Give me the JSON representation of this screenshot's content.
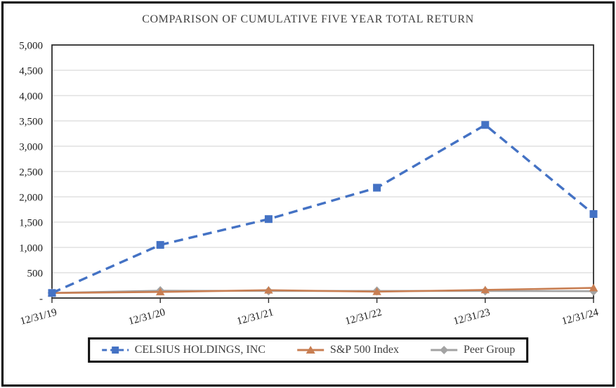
{
  "title": "COMPARISON OF CUMULATIVE FIVE YEAR TOTAL RETURN",
  "chart_data": {
    "type": "line",
    "title": "COMPARISON OF CUMULATIVE FIVE YEAR TOTAL RETURN",
    "categories": [
      "12/31/19",
      "12/31/20",
      "12/31/21",
      "12/31/22",
      "12/31/23",
      "12/31/24"
    ],
    "series": [
      {
        "name": "CELSIUS HOLDINGS, INC",
        "values": [
          100,
          1050,
          1560,
          2180,
          3420,
          1660
        ],
        "color": "#4472C4",
        "marker": "square",
        "line_style": "dashed"
      },
      {
        "name": "S&P 500 Index",
        "values": [
          100,
          120,
          155,
          125,
          160,
          200
        ],
        "color": "#C87E52",
        "marker": "triangle",
        "line_style": "solid"
      },
      {
        "name": "Peer Group",
        "values": [
          100,
          145,
          140,
          140,
          140,
          135
        ],
        "color": "#A3A3A3",
        "marker": "diamond",
        "line_style": "solid"
      }
    ],
    "ylim": [
      0,
      5000
    ],
    "ytick_step": 500,
    "ytick_labels_bottom_to_top": [
      "-",
      "500",
      "1,000",
      "1,500",
      "2,000",
      "2,500",
      "3,000",
      "3,500",
      "4,000",
      "4,500",
      "5,000"
    ],
    "grid": "horizontal",
    "legend_position": "bottom",
    "x_label_rotation_deg": -15,
    "colors": {
      "grid": "#D9D9D9",
      "axis": "#2E2E2E",
      "text": "#1c1c1c",
      "frame": "#000000",
      "legend_border": "#0A0A0A",
      "background": "#FFFFFF"
    }
  }
}
